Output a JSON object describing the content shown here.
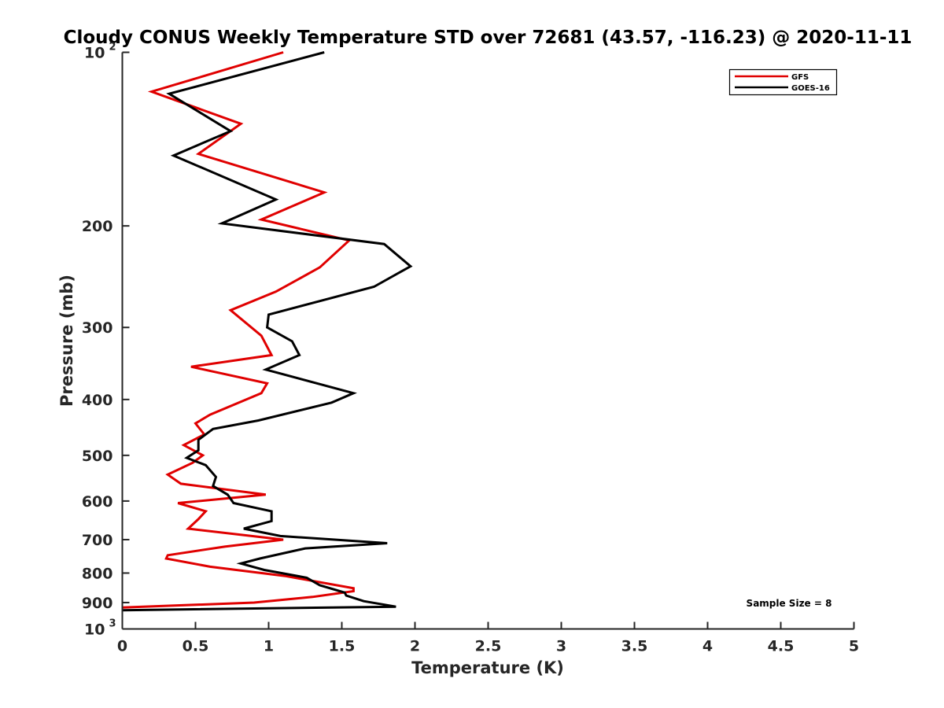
{
  "chart_data": {
    "type": "line",
    "title": "Cloudy CONUS Weekly Temperature STD over 72681 (43.57, -116.23) @ 2020-11-11",
    "xlabel": "Temperature (K)",
    "ylabel": "Pressure (mb)",
    "xlim": [
      0,
      5
    ],
    "ylim": [
      100,
      1000
    ],
    "y_scale": "log",
    "y_reversed": true,
    "x_ticks": [
      0,
      0.5,
      1,
      1.5,
      2,
      2.5,
      3,
      3.5,
      4,
      4.5,
      5
    ],
    "x_tick_labels": [
      "0",
      "0.5",
      "1",
      "1.5",
      "2",
      "2.5",
      "3",
      "3.5",
      "4",
      "4.5",
      "5"
    ],
    "y_ticks": [
      100,
      200,
      300,
      400,
      500,
      600,
      700,
      800,
      900,
      1000
    ],
    "y_tick_labels": [
      {
        "base": "10",
        "exp": "2"
      },
      {
        "base": "200"
      },
      {
        "base": "300"
      },
      {
        "base": "400"
      },
      {
        "base": "500"
      },
      {
        "base": "600"
      },
      {
        "base": "700"
      },
      {
        "base": "800"
      },
      {
        "base": "900"
      },
      {
        "base": "10",
        "exp": "3"
      }
    ],
    "grid": false,
    "legend_position": "top-right",
    "annotation": "Sample Size = 8",
    "series": [
      {
        "name": "GFS",
        "color": "#e00000",
        "points": [
          [
            1.1,
            100
          ],
          [
            0.2,
            117
          ],
          [
            0.81,
            133
          ],
          [
            0.52,
            150
          ],
          [
            1.38,
            175
          ],
          [
            0.95,
            195
          ],
          [
            1.55,
            212
          ],
          [
            1.35,
            236
          ],
          [
            1.05,
            260
          ],
          [
            0.74,
            280
          ],
          [
            0.95,
            310
          ],
          [
            1.02,
            335
          ],
          [
            0.47,
            351
          ],
          [
            0.99,
            375
          ],
          [
            0.95,
            390
          ],
          [
            0.6,
            425
          ],
          [
            0.5,
            440
          ],
          [
            0.56,
            460
          ],
          [
            0.42,
            480
          ],
          [
            0.55,
            500
          ],
          [
            0.48,
            515
          ],
          [
            0.31,
            540
          ],
          [
            0.4,
            560
          ],
          [
            0.98,
            585
          ],
          [
            0.38,
            605
          ],
          [
            0.57,
            625
          ],
          [
            0.52,
            645
          ],
          [
            0.45,
            670
          ],
          [
            1.1,
            700
          ],
          [
            0.7,
            720
          ],
          [
            0.31,
            745
          ],
          [
            0.3,
            755
          ],
          [
            0.6,
            780
          ],
          [
            1.12,
            810
          ],
          [
            1.58,
            850
          ],
          [
            1.58,
            860
          ],
          [
            1.3,
            880
          ],
          [
            0.9,
            900
          ],
          [
            0.0,
            918
          ]
        ]
      },
      {
        "name": "GOES-16",
        "color": "#000000",
        "points": [
          [
            1.38,
            100
          ],
          [
            0.32,
            118
          ],
          [
            0.74,
            137
          ],
          [
            0.35,
            151
          ],
          [
            1.05,
            180
          ],
          [
            0.68,
            198
          ],
          [
            1.79,
            215
          ],
          [
            1.97,
            235
          ],
          [
            1.72,
            255
          ],
          [
            1.0,
            285
          ],
          [
            0.99,
            300
          ],
          [
            1.16,
            317
          ],
          [
            1.21,
            335
          ],
          [
            0.98,
            355
          ],
          [
            1.58,
            390
          ],
          [
            1.43,
            405
          ],
          [
            0.93,
            435
          ],
          [
            0.62,
            450
          ],
          [
            0.52,
            470
          ],
          [
            0.52,
            490
          ],
          [
            0.44,
            505
          ],
          [
            0.57,
            520
          ],
          [
            0.64,
            545
          ],
          [
            0.62,
            565
          ],
          [
            0.72,
            585
          ],
          [
            0.76,
            605
          ],
          [
            1.02,
            625
          ],
          [
            1.02,
            650
          ],
          [
            0.83,
            670
          ],
          [
            1.08,
            690
          ],
          [
            1.81,
            710
          ],
          [
            1.25,
            725
          ],
          [
            0.94,
            755
          ],
          [
            0.81,
            770
          ],
          [
            0.97,
            790
          ],
          [
            1.26,
            815
          ],
          [
            1.35,
            840
          ],
          [
            1.52,
            865
          ],
          [
            1.53,
            875
          ],
          [
            1.65,
            895
          ],
          [
            1.87,
            915
          ],
          [
            0.0,
            928
          ]
        ]
      }
    ]
  }
}
